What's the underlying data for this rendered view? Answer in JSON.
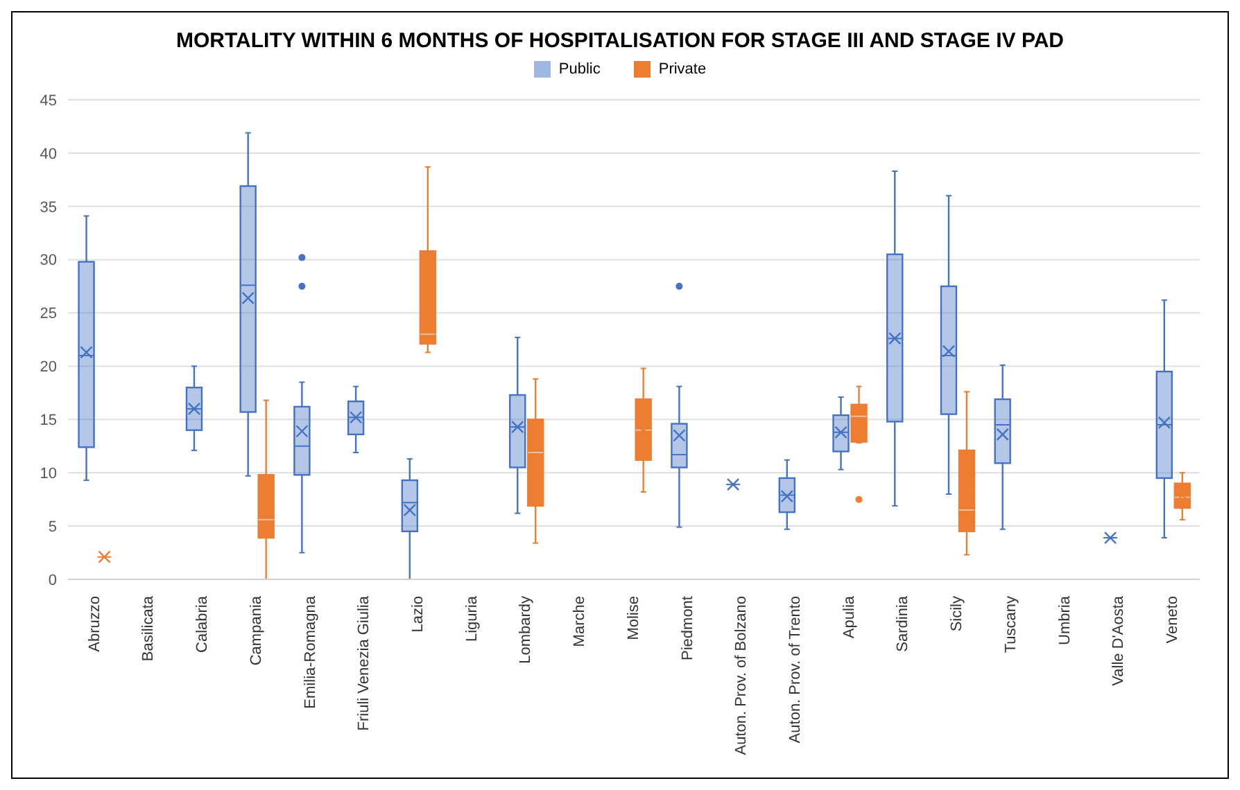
{
  "chart_data": {
    "type": "box",
    "title": "MORTALITY WITHIN 6 MONTHS OF HOSPITALISATION FOR STAGE III AND STAGE IV PAD",
    "categories": [
      "Abruzzo",
      "Basilicata",
      "Calabria",
      "Campania",
      "Emilia-Romagna",
      "Friuli Venezia Giulia",
      "Lazio",
      "Liguria",
      "Lombardy",
      "Marche",
      "Molise",
      "Piedmont",
      "Auton. Prov. of Bolzano",
      "Auton. Prov. of Trento",
      "Apulia",
      "Sardinia",
      "Sicily",
      "Tuscany",
      "Umbria",
      "Valle D'Aosta",
      "Veneto"
    ],
    "series": [
      {
        "name": "Public",
        "color": "#4472c4",
        "boxes": [
          {
            "low": 9.3,
            "q1": 12.4,
            "median": 21,
            "q3": 29.8,
            "high": 34.1,
            "mean": 21.3
          },
          null,
          {
            "low": 12.1,
            "q1": 14,
            "median": 16,
            "q3": 18,
            "high": 20,
            "mean": 16
          },
          {
            "low": 9.7,
            "q1": 15.7,
            "median": 27.6,
            "q3": 36.9,
            "high": 41.9,
            "mean": 26.4
          },
          {
            "low": 2.5,
            "q1": 9.8,
            "median": 12.5,
            "q3": 16.2,
            "high": 18.5,
            "mean": 13.9,
            "outliers": [
              27.5,
              30.2
            ]
          },
          {
            "low": 11.9,
            "q1": 13.6,
            "median": 15.2,
            "q3": 16.7,
            "high": 18.1,
            "mean": 15.2
          },
          {
            "low": 0,
            "q1": 4.5,
            "median": 7.2,
            "q3": 9.3,
            "high": 11.3,
            "mean": 6.5
          },
          null,
          {
            "low": 6.2,
            "q1": 10.5,
            "median": 14.3,
            "q3": 17.3,
            "high": 22.7,
            "mean": 14.3
          },
          null,
          null,
          {
            "low": 4.9,
            "q1": 10.5,
            "median": 11.7,
            "q3": 14.6,
            "high": 18.1,
            "mean": 13.5,
            "outliers": [
              27.5
            ]
          },
          {
            "low": 8.9,
            "q1": 8.9,
            "median": 8.9,
            "q3": 8.9,
            "high": 8.9,
            "mean": 8.9
          },
          {
            "low": 4.7,
            "q1": 6.3,
            "median": 7.9,
            "q3": 9.5,
            "high": 11.2,
            "mean": 7.8
          },
          {
            "low": 10.3,
            "q1": 12,
            "median": 13.8,
            "q3": 15.4,
            "high": 17.1,
            "mean": 13.8
          },
          {
            "low": 6.9,
            "q1": 14.8,
            "median": 22.6,
            "q3": 30.5,
            "high": 38.3,
            "mean": 22.6
          },
          {
            "low": 8,
            "q1": 15.5,
            "median": 21,
            "q3": 27.5,
            "high": 36,
            "mean": 21.4
          },
          {
            "low": 4.7,
            "q1": 10.9,
            "median": 14.5,
            "q3": 16.9,
            "high": 20.1,
            "mean": 13.6
          },
          null,
          {
            "low": 3.9,
            "q1": 3.9,
            "median": 3.9,
            "q3": 3.9,
            "high": 3.9,
            "mean": 3.9
          },
          {
            "low": 3.9,
            "q1": 9.5,
            "median": 14.5,
            "q3": 19.5,
            "high": 26.2,
            "mean": 14.7
          }
        ]
      },
      {
        "name": "Private",
        "color": "#ed7d31",
        "boxes": [
          {
            "low": 2.1,
            "q1": 2.1,
            "median": 2.1,
            "q3": 2.1,
            "high": 2.1,
            "mean": 2.1
          },
          null,
          null,
          {
            "low": 0,
            "q1": 3.9,
            "median": 5.6,
            "q3": 9.8,
            "high": 16.8,
            "mean": 7.1
          },
          null,
          null,
          {
            "low": 21.3,
            "q1": 22.1,
            "median": 23,
            "q3": 30.8,
            "high": 38.7,
            "mean": 27.5
          },
          null,
          {
            "low": 3.4,
            "q1": 6.9,
            "median": 11.9,
            "q3": 15,
            "high": 18.8,
            "mean": 11.2
          },
          null,
          {
            "low": 8.2,
            "q1": 11.2,
            "median": 14,
            "q3": 16.9,
            "high": 19.8,
            "mean": 13.9
          },
          null,
          null,
          null,
          {
            "low": 12.8,
            "q1": 12.9,
            "median": 15.3,
            "q3": 16.4,
            "high": 18.1,
            "mean": 14.1,
            "outliers": [
              7.5
            ]
          },
          null,
          {
            "low": 2.3,
            "q1": 4.5,
            "median": 6.5,
            "q3": 12.1,
            "high": 17.6,
            "mean": 8.8
          },
          null,
          null,
          null,
          {
            "low": 5.6,
            "q1": 6.7,
            "median": 7.7,
            "q3": 9,
            "high": 10,
            "mean": 7.9
          }
        ]
      }
    ],
    "ylim": [
      0,
      45
    ],
    "yticks": [
      0,
      5,
      10,
      15,
      20,
      25,
      30,
      35,
      40,
      45
    ],
    "grid": "y",
    "legend": "top"
  }
}
